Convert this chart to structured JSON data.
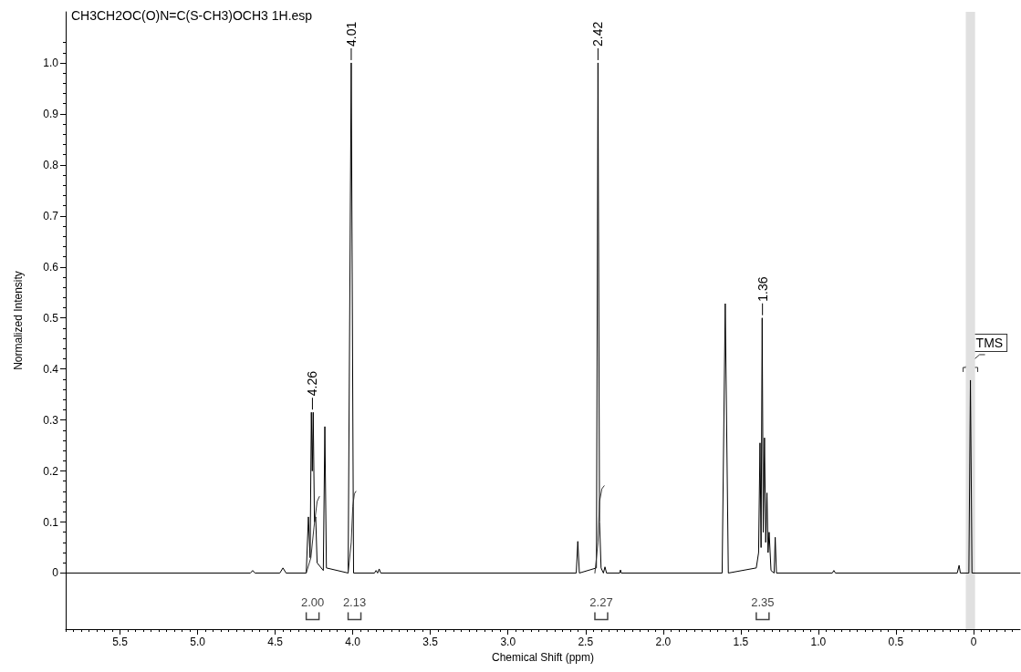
{
  "chart_data": {
    "type": "line",
    "title": "CH3CH2OC(O)N=C(S-CH3)OCH3 1H.esp",
    "xlabel": "Chemical Shift (ppm)",
    "ylabel": "Normalized Intensity",
    "xlim": [
      5.85,
      -0.3
    ],
    "ylim": [
      -0.11,
      1.1
    ],
    "xticks": [
      0,
      0.5,
      {
        "value": 1,
        "label": "1.0"
      },
      1.5,
      {
        "value": 2,
        "label": "2.0"
      },
      2.5,
      {
        "value": 3,
        "label": "3.0"
      },
      3.5,
      {
        "value": 4,
        "label": "4.0"
      },
      4.5,
      {
        "value": 5,
        "label": "5.0"
      },
      5.5,
      {
        "value": -0.25,
        "label": null
      },
      {
        "value": -0.2,
        "label": null
      },
      {
        "value": -0.15,
        "label": null
      },
      {
        "value": -0.1,
        "label": null
      },
      {
        "value": -0.05,
        "label": null
      },
      {
        "value": 0.05,
        "label": null
      },
      {
        "value": 0.1,
        "label": null
      },
      {
        "value": 0.15,
        "label": null
      },
      {
        "value": 0.2,
        "label": null
      },
      {
        "value": 0.25,
        "label": null
      },
      {
        "value": 0.3,
        "label": null
      },
      {
        "value": 0.35,
        "label": null
      },
      {
        "value": 0.4,
        "label": null
      },
      {
        "value": 0.45,
        "label": null
      },
      {
        "value": 0.55,
        "label": null
      },
      {
        "value": 0.6,
        "label": null
      },
      {
        "value": 0.65,
        "label": null
      },
      {
        "value": 0.7,
        "label": null
      },
      {
        "value": 0.75,
        "label": null
      },
      {
        "value": 0.8,
        "label": null
      },
      {
        "value": 0.85,
        "label": null
      },
      {
        "value": 0.9,
        "label": null
      },
      {
        "value": 0.95,
        "label": null
      },
      {
        "value": 1.05,
        "label": null
      },
      {
        "value": 1.1,
        "label": null
      },
      {
        "value": 1.15,
        "label": null
      },
      {
        "value": 1.2,
        "label": null
      },
      {
        "value": 1.25,
        "label": null
      },
      {
        "value": 1.3,
        "label": null
      },
      {
        "value": 1.35,
        "label": null
      },
      {
        "value": 1.4,
        "label": null
      },
      {
        "value": 1.45,
        "label": null
      },
      {
        "value": 1.55,
        "label": null
      },
      {
        "value": 1.6,
        "label": null
      },
      {
        "value": 1.65,
        "label": null
      },
      {
        "value": 1.7,
        "label": null
      },
      {
        "value": 1.75,
        "label": null
      },
      {
        "value": 1.8,
        "label": null
      },
      {
        "value": 1.85,
        "label": null
      },
      {
        "value": 1.9,
        "label": null
      },
      {
        "value": 1.95,
        "label": null
      },
      {
        "value": 2.05,
        "label": null
      },
      {
        "value": 2.1,
        "label": null
      },
      {
        "value": 2.15,
        "label": null
      },
      {
        "value": 2.2,
        "label": null
      },
      {
        "value": 2.25,
        "label": null
      },
      {
        "value": 2.3,
        "label": null
      },
      {
        "value": 2.35,
        "label": null
      },
      {
        "value": 2.4,
        "label": null
      },
      {
        "value": 2.45,
        "label": null
      },
      {
        "value": 2.55,
        "label": null
      },
      {
        "value": 2.6,
        "label": null
      },
      {
        "value": 2.65,
        "label": null
      },
      {
        "value": 2.7,
        "label": null
      },
      {
        "value": 2.75,
        "label": null
      },
      {
        "value": 2.8,
        "label": null
      },
      {
        "value": 2.85,
        "label": null
      },
      {
        "value": 2.9,
        "label": null
      },
      {
        "value": 2.95,
        "label": null
      },
      {
        "value": 3.05,
        "label": null
      },
      {
        "value": 3.1,
        "label": null
      },
      {
        "value": 3.15,
        "label": null
      },
      {
        "value": 3.2,
        "label": null
      },
      {
        "value": 3.25,
        "label": null
      },
      {
        "value": 3.3,
        "label": null
      },
      {
        "value": 3.35,
        "label": null
      },
      {
        "value": 3.4,
        "label": null
      },
      {
        "value": 3.45,
        "label": null
      },
      {
        "value": 3.55,
        "label": null
      },
      {
        "value": 3.6,
        "label": null
      },
      {
        "value": 3.65,
        "label": null
      },
      {
        "value": 3.7,
        "label": null
      },
      {
        "value": 3.75,
        "label": null
      },
      {
        "value": 3.8,
        "label": null
      },
      {
        "value": 3.85,
        "label": null
      },
      {
        "value": 3.9,
        "label": null
      },
      {
        "value": 3.95,
        "label": null
      },
      {
        "value": 4.05,
        "label": null
      },
      {
        "value": 4.1,
        "label": null
      },
      {
        "value": 4.15,
        "label": null
      },
      {
        "value": 4.2,
        "label": null
      },
      {
        "value": 4.25,
        "label": null
      },
      {
        "value": 4.3,
        "label": null
      },
      {
        "value": 4.35,
        "label": null
      },
      {
        "value": 4.4,
        "label": null
      },
      {
        "value": 4.45,
        "label": null
      },
      {
        "value": 4.55,
        "label": null
      },
      {
        "value": 4.6,
        "label": null
      },
      {
        "value": 4.65,
        "label": null
      },
      {
        "value": 4.7,
        "label": null
      },
      {
        "value": 4.75,
        "label": null
      },
      {
        "value": 4.8,
        "label": null
      },
      {
        "value": 4.85,
        "label": null
      },
      {
        "value": 4.9,
        "label": null
      },
      {
        "value": 4.95,
        "label": null
      },
      {
        "value": 5.05,
        "label": null
      },
      {
        "value": 5.1,
        "label": null
      },
      {
        "value": 5.15,
        "label": null
      },
      {
        "value": 5.2,
        "label": null
      },
      {
        "value": 5.25,
        "label": null
      },
      {
        "value": 5.3,
        "label": null
      },
      {
        "value": 5.35,
        "label": null
      },
      {
        "value": 5.4,
        "label": null
      },
      {
        "value": 5.45,
        "label": null
      },
      {
        "value": 5.55,
        "label": null
      },
      {
        "value": 5.6,
        "label": null
      },
      {
        "value": 5.65,
        "label": null
      },
      {
        "value": 5.7,
        "label": null
      },
      {
        "value": 5.75,
        "label": null
      },
      {
        "value": 5.8,
        "label": null
      },
      {
        "value": 5.85,
        "label": null
      }
    ],
    "yticks": [
      0,
      0.1,
      0.2,
      0.3,
      0.4,
      0.5,
      0.6,
      0.7,
      0.8,
      0.9,
      {
        "value": 1,
        "label": "1.0"
      },
      {
        "value": 0.02,
        "label": null
      },
      {
        "value": 0.04,
        "label": null
      },
      {
        "value": 0.06,
        "label": null
      },
      {
        "value": 0.08,
        "label": null
      },
      {
        "value": 0.12,
        "label": null
      },
      {
        "value": 0.14,
        "label": null
      },
      {
        "value": 0.16,
        "label": null
      },
      {
        "value": 0.18,
        "label": null
      },
      {
        "value": 0.22,
        "label": null
      },
      {
        "value": 0.24,
        "label": null
      },
      {
        "value": 0.26,
        "label": null
      },
      {
        "value": 0.28,
        "label": null
      },
      {
        "value": 0.32,
        "label": null
      },
      {
        "value": 0.34,
        "label": null
      },
      {
        "value": 0.36,
        "label": null
      },
      {
        "value": 0.38,
        "label": null
      },
      {
        "value": 0.42,
        "label": null
      },
      {
        "value": 0.44,
        "label": null
      },
      {
        "value": 0.46,
        "label": null
      },
      {
        "value": 0.48,
        "label": null
      },
      {
        "value": 0.52,
        "label": null
      },
      {
        "value": 0.54,
        "label": null
      },
      {
        "value": 0.56,
        "label": null
      },
      {
        "value": 0.58,
        "label": null
      },
      {
        "value": 0.62,
        "label": null
      },
      {
        "value": 0.64,
        "label": null
      },
      {
        "value": 0.66,
        "label": null
      },
      {
        "value": 0.68,
        "label": null
      },
      {
        "value": 0.72,
        "label": null
      },
      {
        "value": 0.74,
        "label": null
      },
      {
        "value": 0.76,
        "label": null
      },
      {
        "value": 0.78,
        "label": null
      },
      {
        "value": 0.82,
        "label": null
      },
      {
        "value": 0.84,
        "label": null
      },
      {
        "value": 0.86,
        "label": null
      },
      {
        "value": 0.88,
        "label": null
      },
      {
        "value": 0.92,
        "label": null
      },
      {
        "value": 0.94,
        "label": null
      },
      {
        "value": 0.96,
        "label": null
      },
      {
        "value": 0.98,
        "label": null
      },
      {
        "value": 1.02,
        "label": null
      },
      {
        "value": 1.04,
        "label": null
      }
    ],
    "series": [
      {
        "color": "#000000",
        "x": [
          5.85,
          4.66,
          4.645,
          4.63,
          4.47,
          4.45,
          4.43,
          4.3,
          4.286,
          4.275,
          4.267,
          4.261,
          4.255,
          4.247,
          4.239,
          4.23,
          4.19,
          4.18,
          4.17,
          4.03,
          4.01,
          3.995,
          3.86,
          3.85,
          3.84,
          3.83,
          3.82,
          2.56,
          2.55,
          2.54,
          2.43,
          2.42,
          2.41,
          2.4,
          2.385,
          2.375,
          2.365,
          2.28,
          2.275,
          2.27,
          1.62,
          1.6,
          1.58,
          1.4,
          1.385,
          1.376,
          1.369,
          1.362,
          1.355,
          1.347,
          1.339,
          1.331,
          1.324,
          1.317,
          1.305,
          1.285,
          1.278,
          1.27,
          0.91,
          0.9,
          0.89,
          0.105,
          0.093,
          0.085,
          0.03,
          0.02,
          0.01,
          -0.3
        ],
        "values": [
          0,
          0,
          0.005,
          0,
          0,
          0.01,
          0,
          0,
          0.11,
          0.03,
          0.315,
          0.2,
          0.315,
          0.1,
          0.11,
          0.02,
          0.005,
          0.287,
          0.01,
          0,
          1.0,
          0,
          0,
          0.005,
          0,
          0.008,
          0,
          0,
          0.062,
          0,
          0.01,
          1.0,
          0.1,
          0.01,
          0,
          0.012,
          0,
          0,
          0.006,
          0,
          0,
          0.528,
          0,
          0.01,
          0.04,
          0.255,
          0.05,
          0.5,
          0.08,
          0.265,
          0.06,
          0.157,
          0.04,
          0.08,
          0.005,
          0,
          0.07,
          0,
          0,
          0.005,
          0,
          0,
          0.015,
          0,
          0,
          0.378,
          0,
          0
        ]
      },
      {
        "color": "#333333",
        "x": [
          4.3,
          4.27,
          4.25,
          4.23,
          4.215
        ],
        "values": [
          0,
          0.03,
          0.09,
          0.14,
          0.15
        ]
      },
      {
        "color": "#333333",
        "x": [
          4.03,
          4.01,
          4.0,
          3.99,
          3.98
        ],
        "values": [
          0,
          0.06,
          0.13,
          0.155,
          0.16
        ]
      },
      {
        "color": "#333333",
        "x": [
          2.44,
          2.42,
          2.41,
          2.395,
          2.38
        ],
        "values": [
          0,
          0.06,
          0.14,
          0.165,
          0.171
        ]
      }
    ],
    "bands": [
      {
        "axis": "x",
        "from": 0.05,
        "to": -0.01,
        "color": "#e0e0e0"
      }
    ],
    "annotations": [
      {
        "text": "4.26",
        "x": 4.26,
        "y": 0.315
      },
      {
        "text": "4.01",
        "x": 4.01,
        "y": 1.0
      },
      {
        "text": "2.42",
        "x": 2.42,
        "y": 1.0
      },
      {
        "text": "1.36",
        "x": 1.36,
        "y": 0.5
      },
      {
        "text": "TMS",
        "x": 0.02,
        "y": 0.378
      },
      {
        "text": "2.00",
        "x": 4.3,
        "y": 0
      },
      {
        "text": "2.13",
        "x": 4.03,
        "y": 0
      },
      {
        "text": "2.27",
        "x": 2.44,
        "y": 0
      },
      {
        "text": "2.35",
        "x": 1.4,
        "y": 0.01
      }
    ]
  }
}
